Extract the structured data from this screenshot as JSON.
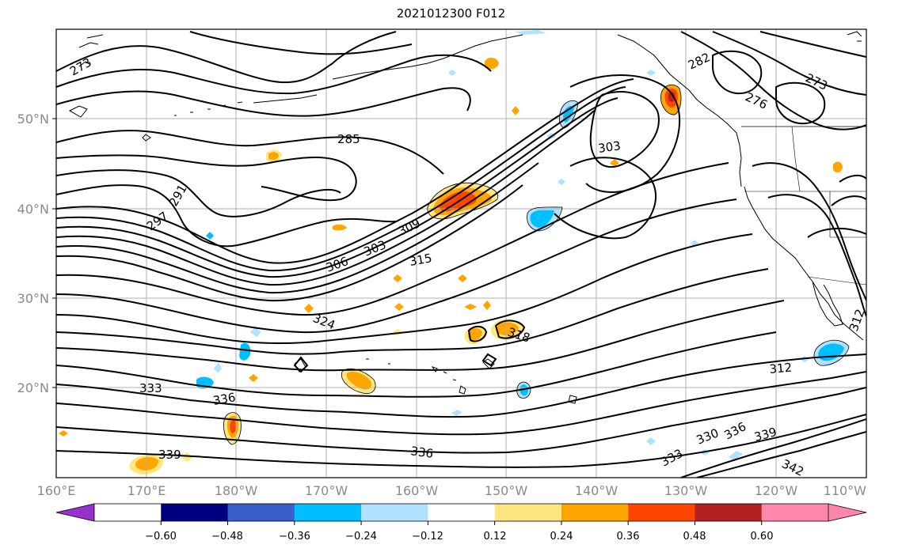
{
  "title": "2021012300 F012",
  "latitude_ticks": [
    "50°N",
    "40°N",
    "30°N",
    "20°N"
  ],
  "longitude_ticks": [
    "160°E",
    "170°E",
    "180°W",
    "170°W",
    "160°W",
    "150°W",
    "140°W",
    "130°W",
    "120°W",
    "110°W"
  ],
  "colorbar": {
    "tick_labels": [
      "−0.60",
      "−0.48",
      "−0.36",
      "−0.24",
      "−0.12",
      "0.12",
      "0.24",
      "0.36",
      "0.48",
      "0.60"
    ],
    "bins": [
      "#ffffff",
      "#000080",
      "#3a5fcd",
      "#00bfff",
      "#b0e2ff",
      "#ffffff",
      "#ffe680",
      "#ffa500",
      "#ff4500",
      "#b22222",
      "#ff88aa"
    ],
    "under_color": "#9932cc",
    "over_color": "#ff88aa"
  },
  "contour_labels": [
    "273",
    "282",
    "276",
    "273",
    "285",
    "303",
    "291",
    "297",
    "306",
    "303",
    "309",
    "315",
    "324",
    "318",
    "333",
    "336",
    "312",
    "339",
    "336",
    "333",
    "330",
    "336",
    "339",
    "342",
    "312"
  ],
  "colors": {
    "contour": "#000000",
    "coastline": "#000000",
    "grid": "#b0b0b0",
    "positive_low": "#ffe680",
    "positive_mid": "#ffa500",
    "positive_high": "#ff4500",
    "positive_max": "#b22222",
    "negative_low": "#b0e2ff",
    "negative_mid": "#00bfff"
  }
}
